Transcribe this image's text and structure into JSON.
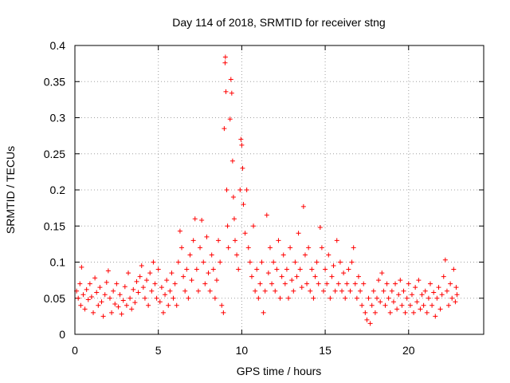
{
  "chart_data": {
    "type": "scatter",
    "title": "Day 114 of 2018, SRMTID for receiver stng",
    "xlabel": "GPS time / hours",
    "ylabel": "SRMTID / TECUs",
    "xlim": [
      0,
      24.5
    ],
    "ylim": [
      0,
      0.4
    ],
    "x_ticks": [
      0,
      5,
      10,
      15,
      20
    ],
    "y_ticks": [
      0,
      0.05,
      0.1,
      0.15,
      0.2,
      0.25,
      0.3,
      0.35,
      0.4
    ],
    "x_tick_labels": [
      "0",
      "5",
      "10",
      "15",
      "20"
    ],
    "y_tick_labels": [
      "0",
      "0.05",
      "0.1",
      "0.15",
      "0.2",
      "0.25",
      "0.3",
      "0.35",
      "0.4"
    ],
    "grid": true,
    "marker": "+",
    "series": [
      {
        "name": "stng",
        "color": "#ff0000",
        "points": [
          [
            0.1,
            0.06
          ],
          [
            0.2,
            0.05
          ],
          [
            0.3,
            0.07
          ],
          [
            0.35,
            0.04
          ],
          [
            0.4,
            0.093
          ],
          [
            0.5,
            0.055
          ],
          [
            0.6,
            0.035
          ],
          [
            0.7,
            0.062
          ],
          [
            0.8,
            0.048
          ],
          [
            0.9,
            0.07
          ],
          [
            1.0,
            0.052
          ],
          [
            1.1,
            0.03
          ],
          [
            1.2,
            0.078
          ],
          [
            1.3,
            0.058
          ],
          [
            1.4,
            0.04
          ],
          [
            1.5,
            0.065
          ],
          [
            1.6,
            0.045
          ],
          [
            1.7,
            0.025
          ],
          [
            1.8,
            0.055
          ],
          [
            1.9,
            0.072
          ],
          [
            2.0,
            0.088
          ],
          [
            2.1,
            0.05
          ],
          [
            2.2,
            0.03
          ],
          [
            2.3,
            0.06
          ],
          [
            2.4,
            0.042
          ],
          [
            2.5,
            0.07
          ],
          [
            2.6,
            0.038
          ],
          [
            2.7,
            0.055
          ],
          [
            2.8,
            0.028
          ],
          [
            2.9,
            0.047
          ],
          [
            3.0,
            0.066
          ],
          [
            3.1,
            0.04
          ],
          [
            3.2,
            0.085
          ],
          [
            3.3,
            0.05
          ],
          [
            3.4,
            0.035
          ],
          [
            3.5,
            0.062
          ],
          [
            3.6,
            0.044
          ],
          [
            3.7,
            0.073
          ],
          [
            3.8,
            0.058
          ],
          [
            3.9,
            0.08
          ],
          [
            4.0,
            0.095
          ],
          [
            4.1,
            0.065
          ],
          [
            4.2,
            0.05
          ],
          [
            4.3,
            0.075
          ],
          [
            4.4,
            0.04
          ],
          [
            4.5,
            0.085
          ],
          [
            4.6,
            0.06
          ],
          [
            4.7,
            0.1
          ],
          [
            4.8,
            0.07
          ],
          [
            4.9,
            0.05
          ],
          [
            5.0,
            0.09
          ],
          [
            5.1,
            0.045
          ],
          [
            5.2,
            0.065
          ],
          [
            5.3,
            0.03
          ],
          [
            5.4,
            0.055
          ],
          [
            5.5,
            0.075
          ],
          [
            5.6,
            0.04
          ],
          [
            5.7,
            0.06
          ],
          [
            5.8,
            0.085
          ],
          [
            5.9,
            0.05
          ],
          [
            6.0,
            0.07
          ],
          [
            6.1,
            0.04
          ],
          [
            6.2,
            0.1
          ],
          [
            6.3,
            0.143
          ],
          [
            6.4,
            0.12
          ],
          [
            6.5,
            0.08
          ],
          [
            6.6,
            0.06
          ],
          [
            6.7,
            0.09
          ],
          [
            6.8,
            0.05
          ],
          [
            6.9,
            0.11
          ],
          [
            7.0,
            0.075
          ],
          [
            7.1,
            0.13
          ],
          [
            7.2,
            0.16
          ],
          [
            7.3,
            0.09
          ],
          [
            7.4,
            0.06
          ],
          [
            7.5,
            0.12
          ],
          [
            7.6,
            0.158
          ],
          [
            7.7,
            0.1
          ],
          [
            7.8,
            0.07
          ],
          [
            7.9,
            0.135
          ],
          [
            8.0,
            0.085
          ],
          [
            8.1,
            0.06
          ],
          [
            8.2,
            0.11
          ],
          [
            8.3,
            0.09
          ],
          [
            8.4,
            0.05
          ],
          [
            8.5,
            0.075
          ],
          [
            8.6,
            0.13
          ],
          [
            8.7,
            0.1
          ],
          [
            8.8,
            0.04
          ],
          [
            8.9,
            0.03
          ],
          [
            8.95,
            0.285
          ],
          [
            9.0,
            0.376
          ],
          [
            9.02,
            0.384
          ],
          [
            9.05,
            0.336
          ],
          [
            9.1,
            0.2
          ],
          [
            9.15,
            0.15
          ],
          [
            9.2,
            0.12
          ],
          [
            9.3,
            0.298
          ],
          [
            9.35,
            0.353
          ],
          [
            9.4,
            0.334
          ],
          [
            9.45,
            0.24
          ],
          [
            9.5,
            0.19
          ],
          [
            9.55,
            0.16
          ],
          [
            9.6,
            0.13
          ],
          [
            9.7,
            0.11
          ],
          [
            9.8,
            0.09
          ],
          [
            9.9,
            0.2
          ],
          [
            9.95,
            0.27
          ],
          [
            10.0,
            0.262
          ],
          [
            10.05,
            0.23
          ],
          [
            10.1,
            0.18
          ],
          [
            10.2,
            0.14
          ],
          [
            10.3,
            0.2
          ],
          [
            10.4,
            0.12
          ],
          [
            10.5,
            0.1
          ],
          [
            10.6,
            0.08
          ],
          [
            10.7,
            0.15
          ],
          [
            10.8,
            0.06
          ],
          [
            10.9,
            0.09
          ],
          [
            11.0,
            0.05
          ],
          [
            11.1,
            0.07
          ],
          [
            11.2,
            0.1
          ],
          [
            11.3,
            0.03
          ],
          [
            11.4,
            0.06
          ],
          [
            11.5,
            0.165
          ],
          [
            11.6,
            0.085
          ],
          [
            11.7,
            0.12
          ],
          [
            11.8,
            0.07
          ],
          [
            11.9,
            0.1
          ],
          [
            12.0,
            0.06
          ],
          [
            12.1,
            0.09
          ],
          [
            12.2,
            0.13
          ],
          [
            12.3,
            0.05
          ],
          [
            12.4,
            0.08
          ],
          [
            12.5,
            0.11
          ],
          [
            12.6,
            0.07
          ],
          [
            12.7,
            0.09
          ],
          [
            12.8,
            0.05
          ],
          [
            12.9,
            0.12
          ],
          [
            13.0,
            0.075
          ],
          [
            13.1,
            0.06
          ],
          [
            13.2,
            0.1
          ],
          [
            13.3,
            0.08
          ],
          [
            13.4,
            0.14
          ],
          [
            13.5,
            0.09
          ],
          [
            13.6,
            0.065
          ],
          [
            13.7,
            0.177
          ],
          [
            13.8,
            0.11
          ],
          [
            13.9,
            0.07
          ],
          [
            14.0,
            0.12
          ],
          [
            14.1,
            0.06
          ],
          [
            14.2,
            0.09
          ],
          [
            14.3,
            0.05
          ],
          [
            14.4,
            0.08
          ],
          [
            14.5,
            0.1
          ],
          [
            14.6,
            0.07
          ],
          [
            14.7,
            0.148
          ],
          [
            14.8,
            0.12
          ],
          [
            14.9,
            0.06
          ],
          [
            15.0,
            0.09
          ],
          [
            15.1,
            0.07
          ],
          [
            15.2,
            0.11
          ],
          [
            15.3,
            0.05
          ],
          [
            15.4,
            0.08
          ],
          [
            15.5,
            0.095
          ],
          [
            15.6,
            0.06
          ],
          [
            15.7,
            0.13
          ],
          [
            15.8,
            0.07
          ],
          [
            15.9,
            0.1
          ],
          [
            16.0,
            0.06
          ],
          [
            16.1,
            0.085
          ],
          [
            16.2,
            0.05
          ],
          [
            16.3,
            0.07
          ],
          [
            16.4,
            0.09
          ],
          [
            16.5,
            0.06
          ],
          [
            16.6,
            0.1
          ],
          [
            16.7,
            0.12
          ],
          [
            16.8,
            0.07
          ],
          [
            16.9,
            0.05
          ],
          [
            17.0,
            0.08
          ],
          [
            17.1,
            0.06
          ],
          [
            17.2,
            0.04
          ],
          [
            17.3,
            0.07
          ],
          [
            17.4,
            0.03
          ],
          [
            17.5,
            0.02
          ],
          [
            17.6,
            0.05
          ],
          [
            17.7,
            0.015
          ],
          [
            17.8,
            0.04
          ],
          [
            17.9,
            0.06
          ],
          [
            18.0,
            0.03
          ],
          [
            18.1,
            0.05
          ],
          [
            18.2,
            0.075
          ],
          [
            18.3,
            0.045
          ],
          [
            18.4,
            0.085
          ],
          [
            18.5,
            0.06
          ],
          [
            18.6,
            0.04
          ],
          [
            18.7,
            0.07
          ],
          [
            18.8,
            0.05
          ],
          [
            18.9,
            0.03
          ],
          [
            19.0,
            0.06
          ],
          [
            19.1,
            0.045
          ],
          [
            19.2,
            0.07
          ],
          [
            19.3,
            0.035
          ],
          [
            19.4,
            0.055
          ],
          [
            19.5,
            0.075
          ],
          [
            19.6,
            0.04
          ],
          [
            19.7,
            0.06
          ],
          [
            19.8,
            0.03
          ],
          [
            19.9,
            0.05
          ],
          [
            20.0,
            0.07
          ],
          [
            20.1,
            0.04
          ],
          [
            20.2,
            0.055
          ],
          [
            20.3,
            0.03
          ],
          [
            20.4,
            0.065
          ],
          [
            20.5,
            0.045
          ],
          [
            20.6,
            0.075
          ],
          [
            20.7,
            0.035
          ],
          [
            20.8,
            0.055
          ],
          [
            20.9,
            0.04
          ],
          [
            21.0,
            0.06
          ],
          [
            21.1,
            0.03
          ],
          [
            21.2,
            0.05
          ],
          [
            21.3,
            0.07
          ],
          [
            21.4,
            0.04
          ],
          [
            21.5,
            0.058
          ],
          [
            21.6,
            0.025
          ],
          [
            21.7,
            0.05
          ],
          [
            21.8,
            0.065
          ],
          [
            21.9,
            0.035
          ],
          [
            22.0,
            0.055
          ],
          [
            22.1,
            0.08
          ],
          [
            22.2,
            0.103
          ],
          [
            22.3,
            0.06
          ],
          [
            22.4,
            0.04
          ],
          [
            22.5,
            0.07
          ],
          [
            22.6,
            0.05
          ],
          [
            22.7,
            0.09
          ],
          [
            22.8,
            0.045
          ],
          [
            22.85,
            0.065
          ],
          [
            22.9,
            0.055
          ]
        ]
      }
    ]
  }
}
